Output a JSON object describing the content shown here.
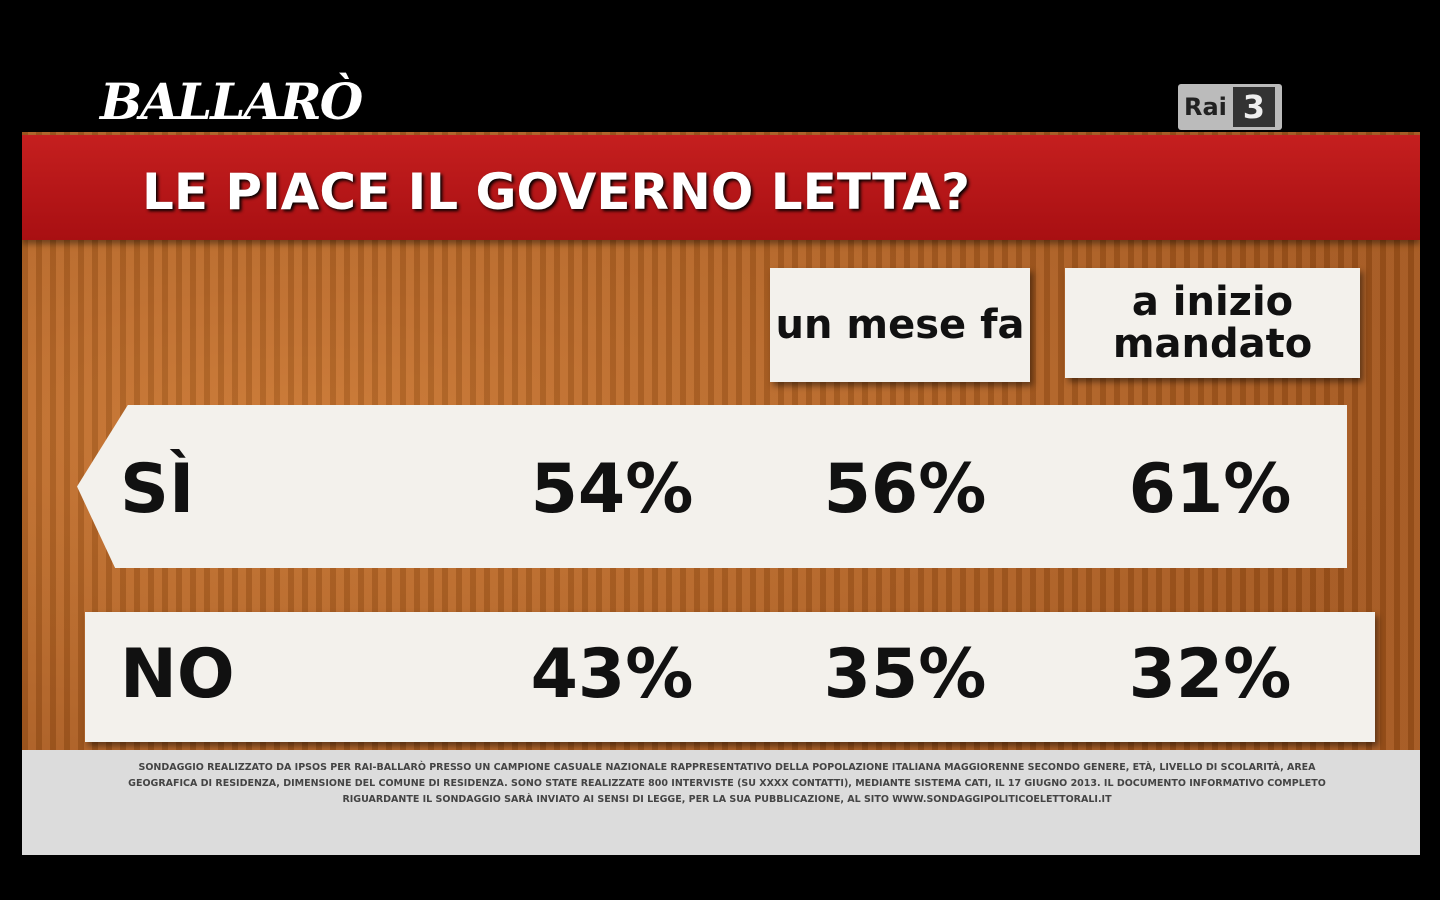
{
  "header": {
    "logo": "BALLARÒ",
    "channel": "Rai",
    "channel_number": "3"
  },
  "title": "LE PIACE IL GOVERNO LETTA?",
  "table": {
    "columns": [
      "un mese fa",
      "a inizio mandato"
    ],
    "rows": [
      {
        "label": "SÌ",
        "values": [
          "54%",
          "56%",
          "61%"
        ]
      },
      {
        "label": "NO",
        "values": [
          "43%",
          "35%",
          "32%"
        ]
      }
    ]
  },
  "footnote": "SONDAGGIO REALIZZATO DA IPSOS PER RAI-BALLARÒ PRESSO UN CAMPIONE CASUALE NAZIONALE RAPPRESENTATIVO DELLA POPOLAZIONE ITALIANA MAGGIORENNE SECONDO GENERE, ETÀ, LIVELLO DI SCOLARITÀ, AREA GEOGRAFICA DI RESIDENZA, DIMENSIONE DEL COMUNE DI RESIDENZA. SONO STATE REALIZZATE 800 INTERVISTE (SU XXXX CONTATTI), MEDIANTE SISTEMA CATI, IL 17 GIUGNO 2013. IL DOCUMENTO INFORMATIVO COMPLETO RIGUARDANTE IL SONDAGGIO SARÀ INVIATO AI SENSI DI LEGGE, PER LA SUA PUBBLICAZIONE, AL SITO WWW.SONDAGGIPOLITICOELETTORALI.IT"
}
